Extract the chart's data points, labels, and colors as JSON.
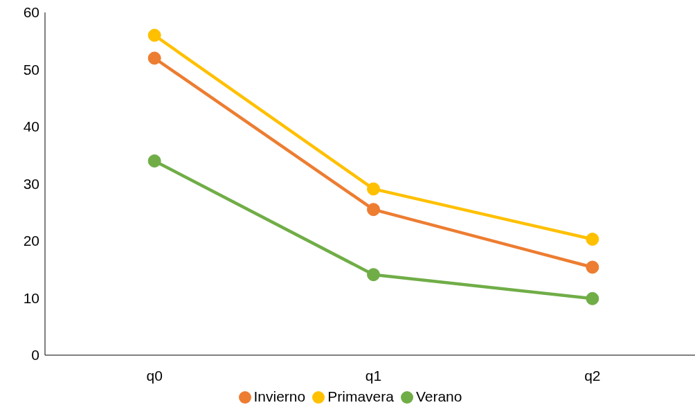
{
  "chart_data": {
    "type": "line",
    "categories": [
      "q0",
      "q1",
      "q2"
    ],
    "series": [
      {
        "name": "Invierno",
        "color": "#ed7d31",
        "values": [
          52,
          25.5,
          15.4
        ]
      },
      {
        "name": "Primavera",
        "color": "#ffc000",
        "values": [
          56,
          29.1,
          20.3
        ]
      },
      {
        "name": "Verano",
        "color": "#70ad47",
        "values": [
          34,
          14.1,
          9.9
        ]
      }
    ],
    "ylim": [
      0,
      60
    ],
    "yticks": [
      0,
      10,
      20,
      30,
      40,
      50,
      60
    ],
    "grid": false,
    "legend": "bottom",
    "marker": "circle",
    "line_style": "solid"
  }
}
